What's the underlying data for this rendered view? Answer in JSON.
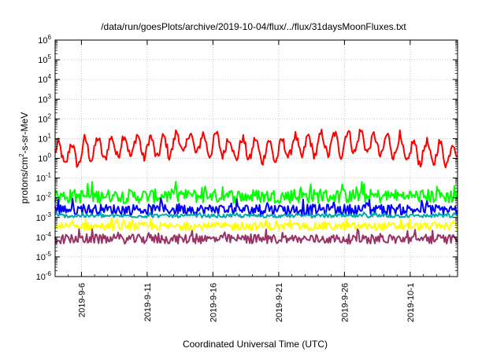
{
  "chart_data": {
    "type": "line",
    "title": "/data/run/goesPlots/archive/2019-10-04/flux/../flux/31daysMoonFluxes.txt",
    "xlabel": "Coordinated Universal Time (UTC)",
    "ylabel": {
      "pre": "protons/cm",
      "sup": "2",
      "post": "-s-sr-MeV"
    },
    "yscale": "log",
    "ylim": [
      1e-06,
      1000000.0
    ],
    "xlim": [
      0,
      30.6
    ],
    "x_origin_date": "2019-9-4",
    "x_tick_labels": [
      "2019-9-6",
      "2019-9-11",
      "2019-9-16",
      "2019-9-21",
      "2019-9-26",
      "2019-10-1"
    ],
    "x_tick_positions": [
      2,
      7,
      12,
      17,
      22,
      27
    ],
    "y_tick_exponents": [
      -6,
      -5,
      -4,
      -3,
      -2,
      -1,
      0,
      1,
      2,
      3,
      4,
      5,
      6
    ],
    "grid": true,
    "series": [
      {
        "color": "#ff0000",
        "center": 2.0,
        "spread": 3.2,
        "trend": [
          0.8,
          1.5,
          2.2,
          1.8,
          3.0,
          2.5,
          1.5,
          1.2,
          2.0,
          2.6,
          3.5,
          2.2,
          1.0,
          0.9
        ]
      },
      {
        "color": "#00ff00",
        "center": 0.012,
        "spread": 2.8,
        "trend": [
          1,
          1,
          1,
          1,
          1,
          1,
          1,
          1,
          1,
          1,
          1,
          1,
          1,
          1
        ]
      },
      {
        "color": "#0000ff",
        "center": 0.0025,
        "spread": 2.2,
        "trend": [
          1,
          1,
          1,
          1,
          1,
          1,
          1,
          1,
          1,
          1,
          1,
          1,
          1,
          1
        ]
      },
      {
        "color": "#00aaaa",
        "center": 0.0012,
        "spread": 1.3,
        "trend": [
          1,
          1,
          1,
          1,
          1,
          1,
          1,
          1,
          1,
          1,
          1,
          1,
          1,
          1
        ]
      },
      {
        "color": "#ffff00",
        "center": 0.00035,
        "spread": 1.8,
        "trend": [
          1,
          1,
          1,
          1,
          1,
          1,
          1,
          1,
          1,
          1,
          1,
          1,
          1,
          1
        ]
      },
      {
        "color": "#993366",
        "center": 8e-05,
        "spread": 2.0,
        "trend": [
          1,
          1,
          1,
          1,
          1,
          1,
          1,
          1,
          1,
          1,
          1,
          1,
          1,
          1
        ]
      }
    ]
  }
}
